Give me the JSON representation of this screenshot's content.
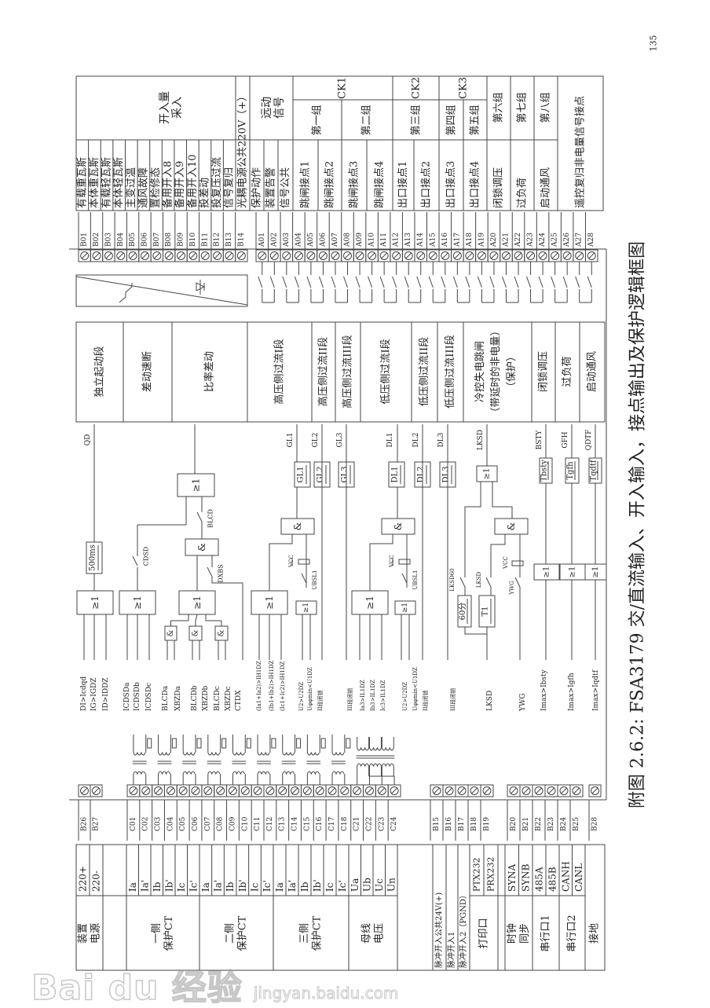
{
  "page_number": "135",
  "caption": "附图 2.6.2: FSA3179 交/直流输入、开入输入，接点输出及保护逻辑框图",
  "watermark": {
    "logo": "Bai du 经验",
    "url": "jingyan.baidu.com"
  },
  "right_table": {
    "binary_group": [
      "开入量",
      "采入"
    ],
    "binary_inputs": [
      {
        "terminal": "B01",
        "name": "有载重瓦斯"
      },
      {
        "terminal": "B02",
        "name": "本体重瓦斯"
      },
      {
        "terminal": "B03",
        "name": "有载轻瓦斯"
      },
      {
        "terminal": "B04",
        "name": "本体轻瓦斯"
      },
      {
        "terminal": "B05",
        "name": "主变过温"
      },
      {
        "terminal": "B06",
        "name": "通风故障"
      },
      {
        "terminal": "B07",
        "name": "置检修态"
      },
      {
        "terminal": "B08",
        "name": "备用开入8"
      },
      {
        "terminal": "B09",
        "name": "备用开入9"
      },
      {
        "terminal": "B10",
        "name": "备用开入10"
      },
      {
        "terminal": "B11",
        "name": "投差动"
      },
      {
        "terminal": "B12",
        "name": "投复压过流"
      },
      {
        "terminal": "B13",
        "name": "信号复归"
      }
    ],
    "opto_common": {
      "terminal": "B14",
      "name": "光耦电源公共220V（+）"
    },
    "remote_group": [
      "远动",
      "信号"
    ],
    "remote_signals": [
      "保护动作",
      "装置告警",
      "信号公共"
    ],
    "outputs": [
      "跳闸接点1",
      "跳闸接点2",
      "跳闸接点3",
      "跳闸接点4",
      "出口接点1",
      "出口接点2",
      "出口接点3",
      "出口接点4",
      "闭锁调压",
      "过负荷",
      "启动通风"
    ],
    "remote_reset": "遥控复归非电量信号接点",
    "ck_headers": [
      "CK1",
      "CK2",
      "CK3"
    ],
    "groups": [
      "第一组",
      "第二组",
      "第三组",
      "第四组",
      "第五组",
      "第六组",
      "第七组",
      "第八组"
    ],
    "a_terminals": [
      "A01",
      "A02",
      "A03",
      "A04",
      "A05",
      "A06",
      "A07",
      "A08",
      "A09",
      "A10",
      "A11",
      "A12",
      "A13",
      "A14",
      "A15",
      "A16",
      "A17",
      "A18",
      "A19",
      "A20",
      "A21",
      "A22",
      "A23",
      "A24",
      "A25",
      "A26",
      "A27",
      "A28"
    ]
  },
  "functions": [
    "独立起动段",
    "差动速断",
    "比率差动",
    "高压侧过流I段",
    "高压侧过流II段",
    "高压侧过流III段",
    "低压侧过流I段",
    "低压侧过流II段",
    "低压侧过流III段",
    [
      "冷控失电跳闸",
      "（带延时的非电量）",
      "（保护）"
    ],
    "闭锁调压",
    "过负荷",
    "启动通风"
  ],
  "logic": {
    "outputs": [
      "QD",
      "GL1",
      "GL2",
      "GL3",
      "DL1",
      "DL2",
      "DL3",
      "LKSD",
      "BSTY",
      "GFH",
      "QDTF"
    ],
    "or_symbol": "≥1",
    "and_symbol": "&",
    "delay_500": "500ms",
    "switches": [
      "CDSD",
      "BLCD",
      "DXBS",
      "UBSL1",
      "UBSL1",
      "LKSD60",
      "LKSD",
      "YWG"
    ],
    "vcc": "VCC",
    "timers": [
      "GL1",
      "GL2",
      "GL3",
      "DL1",
      "DL2",
      "DL3",
      "60分",
      "T1",
      "Tbsty",
      "Tgfh",
      "Tqdtf"
    ],
    "inputs": [
      "DI>Icdqd",
      "IG>IGDZ",
      "ID>IDDZ",
      "ICDSDa",
      "ICDSDb",
      "ICDSDc",
      "BLCDa",
      "XBZDa",
      "BLCDb",
      "XBZDb",
      "BLCDc",
      "XBZDc",
      "CTDX",
      "(Ia1+Ia2)>IH1DZ",
      "(Ib1+Ib2)>IH1DZ",
      "(Ic1+Ic2)>IH1DZ",
      "U2>U2DZ",
      "Uφφmin<U1DZ",
      "II段闭锁",
      "III段闭锁",
      "Ia3>IL1DZ",
      "Ib3>IL1DZ",
      "Ic3>IL1DZ",
      "U2>U2DZ",
      "Uφφmin<U1DZ",
      "II段闭锁",
      "III段闭锁",
      "LKSD",
      "YWG",
      "Imax>Ibsty",
      "Imax>Igfh",
      "Imax>Iqdtf"
    ]
  },
  "bottom_terminals": {
    "power": [
      "B26",
      "B27"
    ],
    "analog": [
      "C01",
      "C02",
      "C03",
      "C04",
      "C05",
      "C06",
      "C07",
      "C08",
      "C09",
      "C10",
      "C11",
      "C12",
      "C13",
      "C14",
      "C15",
      "C16",
      "C17",
      "C18",
      "C21",
      "C22",
      "C23",
      "C24"
    ],
    "pulse": [
      "B15",
      "B16",
      "B17",
      "B18",
      "B19"
    ],
    "comm": [
      "B20",
      "B21",
      "B22",
      "B23",
      "B24",
      "B25"
    ],
    "ground": [
      "B28"
    ]
  },
  "left_table": {
    "power": {
      "label": [
        "装置",
        "电源"
      ],
      "signals": [
        "220+",
        "220-"
      ]
    },
    "ct_groups": [
      {
        "label": [
          "一侧",
          "保护CT"
        ],
        "signals": [
          "Ia",
          "Ia'",
          "Ib",
          "Ib'",
          "Ic",
          "Ic'"
        ]
      },
      {
        "label": [
          "二侧",
          "保护CT"
        ],
        "signals": [
          "Ia",
          "Ia'",
          "Ib",
          "Ib'",
          "Ic",
          "Ic'"
        ]
      },
      {
        "label": [
          "三侧",
          "保护CT"
        ],
        "signals": [
          "Ia",
          "Ia'",
          "Ib",
          "Ib'",
          "Ic",
          "Ic'"
        ]
      }
    ],
    "bus_voltage": {
      "label": [
        "母线",
        "电压"
      ],
      "signals": [
        "Ua",
        "Ub",
        "Uc",
        "Un"
      ]
    },
    "pulse_rows": [
      "脉冲开入公共24V(+)",
      "脉冲开入1",
      "脉冲开入2（PGND）"
    ],
    "print_port": {
      "label": "打印口",
      "signals": [
        "PTX232",
        "PRX232"
      ]
    },
    "comm_groups": [
      {
        "label": [
          "时钟",
          "同步"
        ],
        "signals": [
          "SYNA",
          "SYNB"
        ]
      },
      {
        "label": [
          "串行口1"
        ],
        "signals": [
          "485A",
          "485B"
        ]
      },
      {
        "label": [
          "串行口2"
        ],
        "signals": [
          "CANH",
          "CANL"
        ]
      }
    ],
    "ground": "接地"
  }
}
